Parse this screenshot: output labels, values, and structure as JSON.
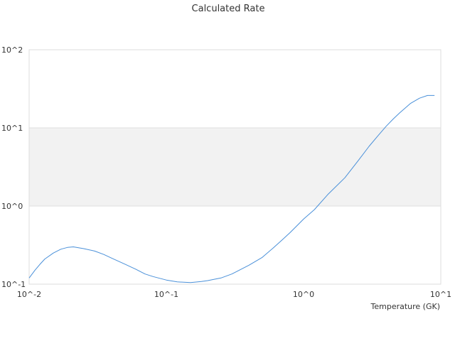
{
  "chart_data": {
    "type": "line",
    "title": "Calculated Rate",
    "xlabel": "Temperature (GK)",
    "ylabel": "",
    "xscale": "log",
    "yscale": "log",
    "xlim": [
      0.01,
      10
    ],
    "ylim": [
      0.1,
      100
    ],
    "x_tick_labels": [
      "10^-2",
      "10^-1",
      "10^0",
      "10^1"
    ],
    "y_tick_labels": [
      "10^-1",
      "10^0",
      "10^1",
      "10^2"
    ],
    "grid": "horizontal",
    "legend": "none",
    "colors": {
      "line": "#4a90d9",
      "band": "#f2f2f2",
      "gridline": "#dddddd",
      "text": "#333333"
    },
    "series": [
      {
        "x": [
          0.01,
          0.011,
          0.012,
          0.013,
          0.015,
          0.017,
          0.019,
          0.021,
          0.025,
          0.03,
          0.035,
          0.04,
          0.05,
          0.06,
          0.07,
          0.08,
          0.1,
          0.12,
          0.15,
          0.18,
          0.2,
          0.25,
          0.3,
          0.35,
          0.4,
          0.5,
          0.6,
          0.7,
          0.8,
          1.0,
          1.2,
          1.5,
          2.0,
          2.5,
          3.0,
          3.5,
          4.0,
          4.5,
          5.0,
          6.0,
          7.0,
          8.0,
          9.0
        ],
        "values": [
          0.12,
          0.15,
          0.18,
          0.21,
          0.25,
          0.28,
          0.295,
          0.3,
          0.285,
          0.265,
          0.24,
          0.215,
          0.18,
          0.155,
          0.135,
          0.125,
          0.113,
          0.107,
          0.105,
          0.108,
          0.111,
          0.12,
          0.135,
          0.155,
          0.175,
          0.22,
          0.29,
          0.37,
          0.46,
          0.68,
          0.9,
          1.4,
          2.3,
          3.8,
          5.8,
          8.0,
          10.5,
          13.0,
          15.5,
          20.5,
          24.0,
          26.0,
          26.0
        ]
      }
    ]
  }
}
